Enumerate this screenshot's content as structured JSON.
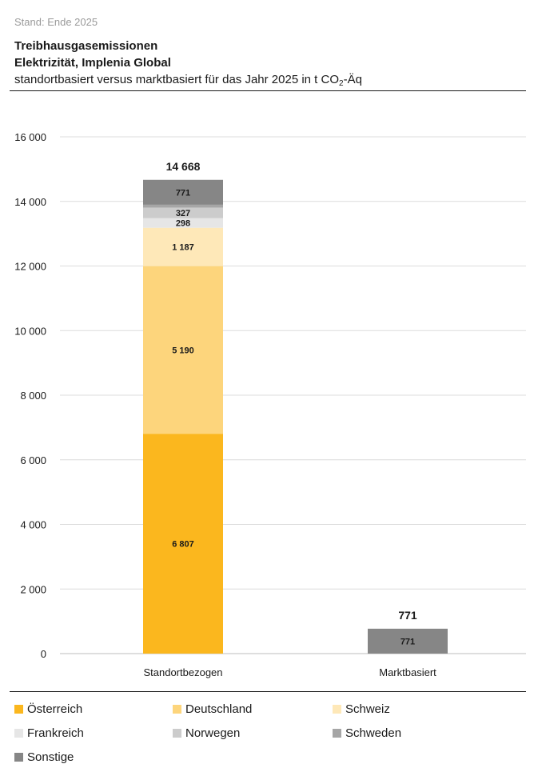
{
  "header": {
    "status": "Stand: Ende 2025",
    "title_line1": "Treibhausgasemissionen",
    "title_line2": "Elektrizität, Implenia Global",
    "subtitle_pre": "standortbasiert versus marktbasiert für das Jahr 2025 in t CO",
    "subtitle_sub": "2",
    "subtitle_post": "-Äq"
  },
  "chart_data": {
    "type": "bar",
    "stacked": true,
    "categories": [
      "Standortbezogen",
      "Marktbasiert"
    ],
    "totals": [
      "14 668",
      "771"
    ],
    "ylim": [
      0,
      16000
    ],
    "yticks": [
      0,
      2000,
      4000,
      6000,
      8000,
      10000,
      12000,
      14000,
      16000
    ],
    "ytick_labels": [
      "0",
      "2 000",
      "4 000",
      "6 000",
      "8 000",
      "10 000",
      "12 000",
      "14 000",
      "16 000"
    ],
    "grid": true,
    "legend_position": "bottom",
    "series": [
      {
        "name": "Österreich",
        "color": "#fbb71e",
        "values": [
          6807,
          0
        ],
        "labels": [
          "6 807",
          ""
        ]
      },
      {
        "name": "Deutschland",
        "color": "#fdd57c",
        "values": [
          5190,
          0
        ],
        "labels": [
          "5 190",
          ""
        ]
      },
      {
        "name": "Schweiz",
        "color": "#fee8b8",
        "values": [
          1187,
          0
        ],
        "labels": [
          "1 187",
          ""
        ]
      },
      {
        "name": "Frankreich",
        "color": "#e6e6e6",
        "values": [
          298,
          0
        ],
        "labels": [
          "298",
          ""
        ]
      },
      {
        "name": "Norwegen",
        "color": "#cccccc",
        "values": [
          327,
          0
        ],
        "labels": [
          "327",
          ""
        ]
      },
      {
        "name": "Schweden",
        "color": "#a6a6a6",
        "values": [
          88,
          0
        ],
        "labels": [
          "",
          ""
        ]
      },
      {
        "name": "Sonstige",
        "color": "#868686",
        "values": [
          771,
          771
        ],
        "labels": [
          "771",
          "771"
        ]
      }
    ]
  }
}
